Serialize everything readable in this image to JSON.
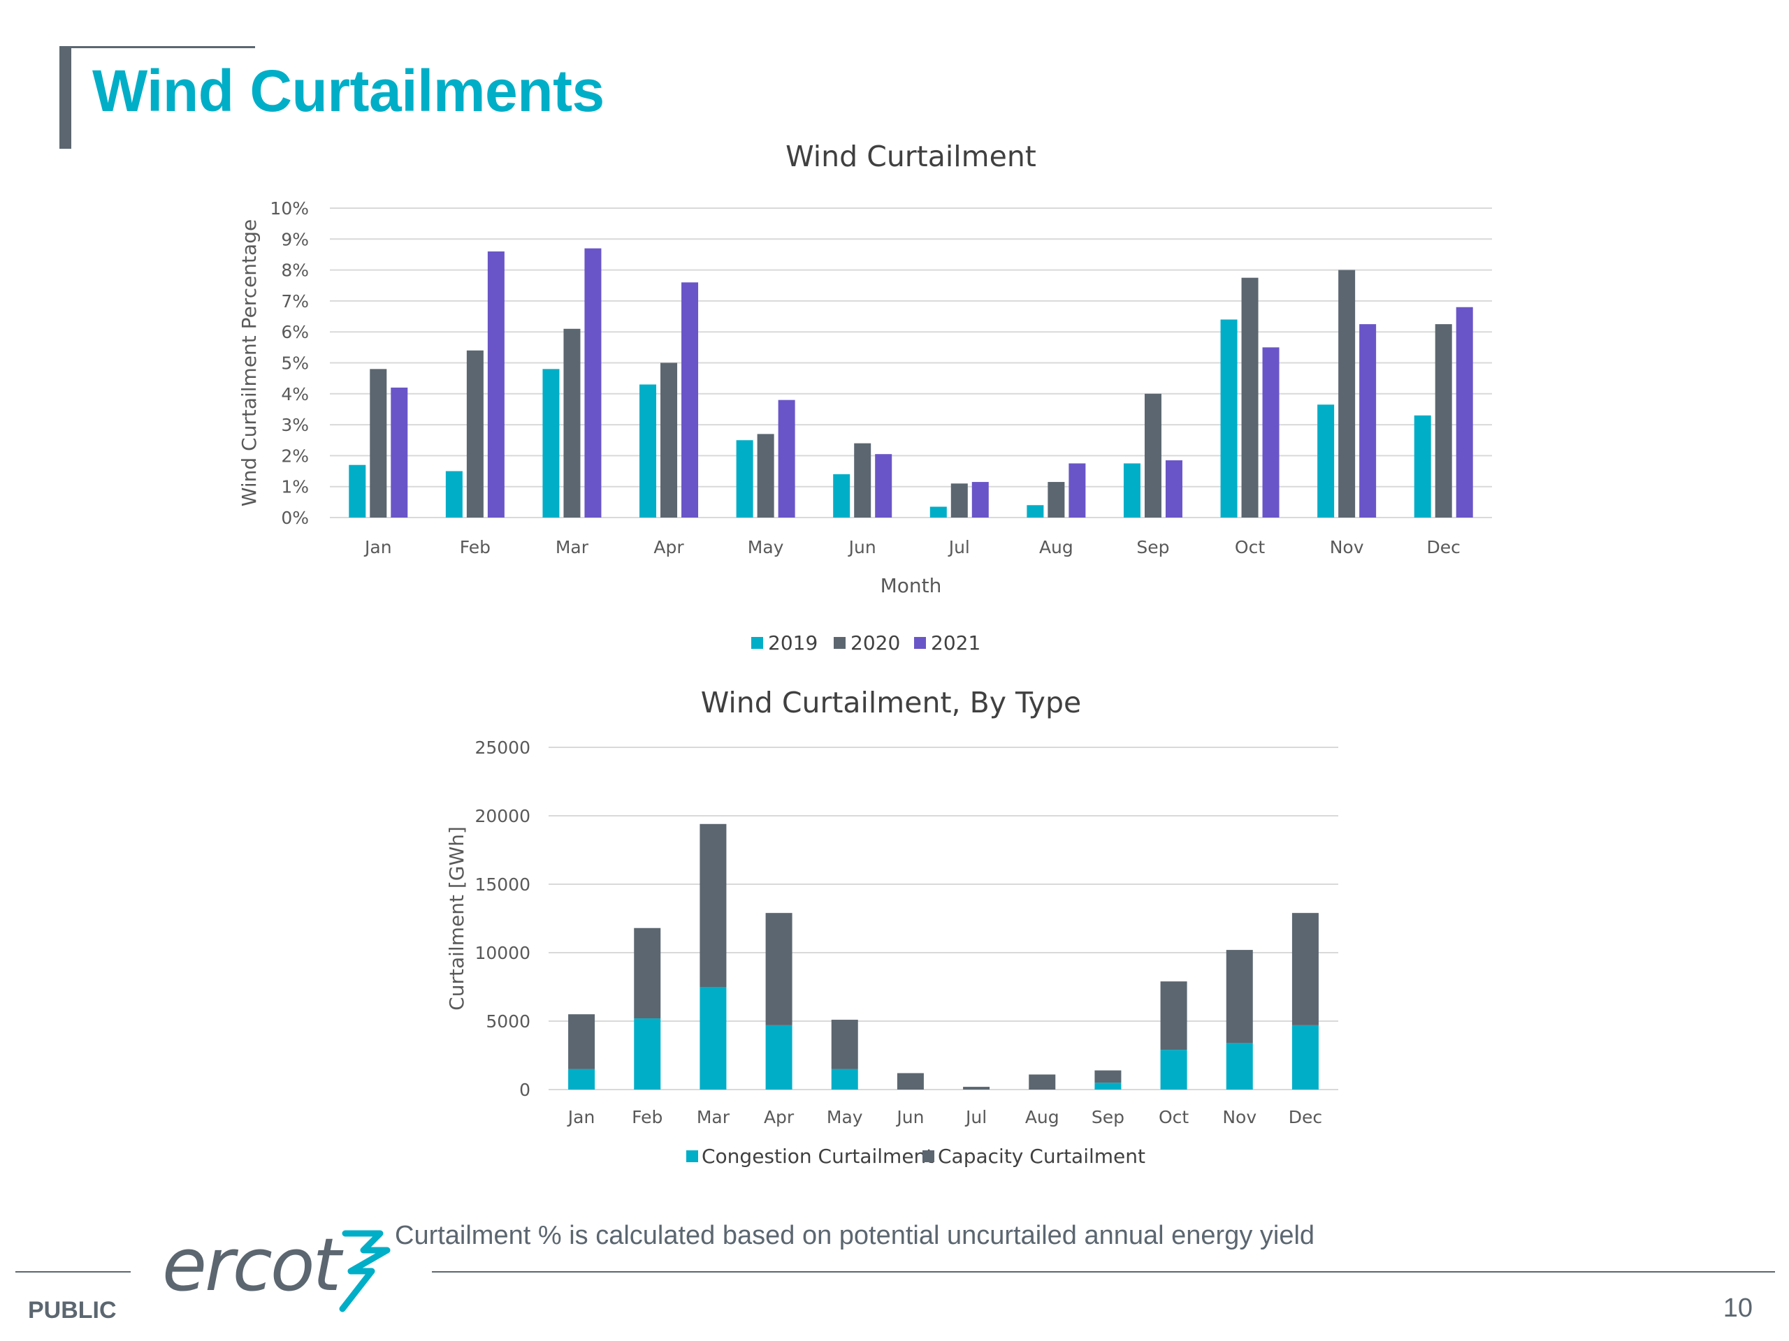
{
  "slide": {
    "title": "Wind Curtailments",
    "footnote": "Curtailment % is calculated based on potential uncurtailed annual energy yield",
    "classification": "PUBLIC",
    "page_number": "10",
    "logo_text": "ercot"
  },
  "colors": {
    "teal": "#00aec7",
    "slate": "#5b6670",
    "purple": "#6a55c8"
  },
  "chart_data": [
    {
      "type": "bar",
      "title": "Wind Curtailment",
      "xlabel": "Month",
      "ylabel": "Wind Curtailment Percentage",
      "categories": [
        "Jan",
        "Feb",
        "Mar",
        "Apr",
        "May",
        "Jun",
        "Jul",
        "Aug",
        "Sep",
        "Oct",
        "Nov",
        "Dec"
      ],
      "ylim": [
        0,
        10
      ],
      "yticks": [
        "0%",
        "1%",
        "2%",
        "3%",
        "4%",
        "5%",
        "6%",
        "7%",
        "8%",
        "9%",
        "10%"
      ],
      "grid": true,
      "legend": "bottom",
      "series": [
        {
          "name": "2019",
          "color": "#00aec7",
          "values": [
            1.7,
            1.5,
            4.8,
            4.3,
            2.5,
            1.4,
            0.35,
            0.4,
            1.75,
            6.4,
            3.65,
            3.3
          ]
        },
        {
          "name": "2020",
          "color": "#5b6670",
          "values": [
            4.8,
            5.4,
            6.1,
            5.0,
            2.7,
            2.4,
            1.1,
            1.15,
            4.0,
            7.75,
            8.0,
            6.25
          ]
        },
        {
          "name": "2021",
          "color": "#6a55c8",
          "values": [
            4.2,
            8.6,
            8.7,
            7.6,
            3.8,
            2.05,
            1.15,
            1.75,
            1.85,
            5.5,
            6.25,
            6.8
          ]
        }
      ]
    },
    {
      "type": "bar",
      "stacked": true,
      "title": "Wind Curtailment, By Type",
      "xlabel": "",
      "ylabel": "Curtailment [GWh]",
      "categories": [
        "Jan",
        "Feb",
        "Mar",
        "Apr",
        "May",
        "Jun",
        "Jul",
        "Aug",
        "Sep",
        "Oct",
        "Nov",
        "Dec"
      ],
      "ylim": [
        0,
        25000
      ],
      "yticks": [
        "0",
        "5000",
        "10000",
        "15000",
        "20000",
        "25000"
      ],
      "grid": true,
      "legend": "bottom",
      "series": [
        {
          "name": "Congestion Curtailment",
          "color": "#00aec7",
          "values": [
            1500,
            5200,
            7500,
            4700,
            1500,
            0,
            0,
            0,
            500,
            2900,
            3400,
            4700
          ]
        },
        {
          "name": "Capacity Curtailment",
          "color": "#5b6670",
          "values": [
            4000,
            6600,
            11900,
            8200,
            3600,
            1200,
            200,
            1100,
            900,
            5000,
            6800,
            8200
          ]
        }
      ]
    }
  ]
}
